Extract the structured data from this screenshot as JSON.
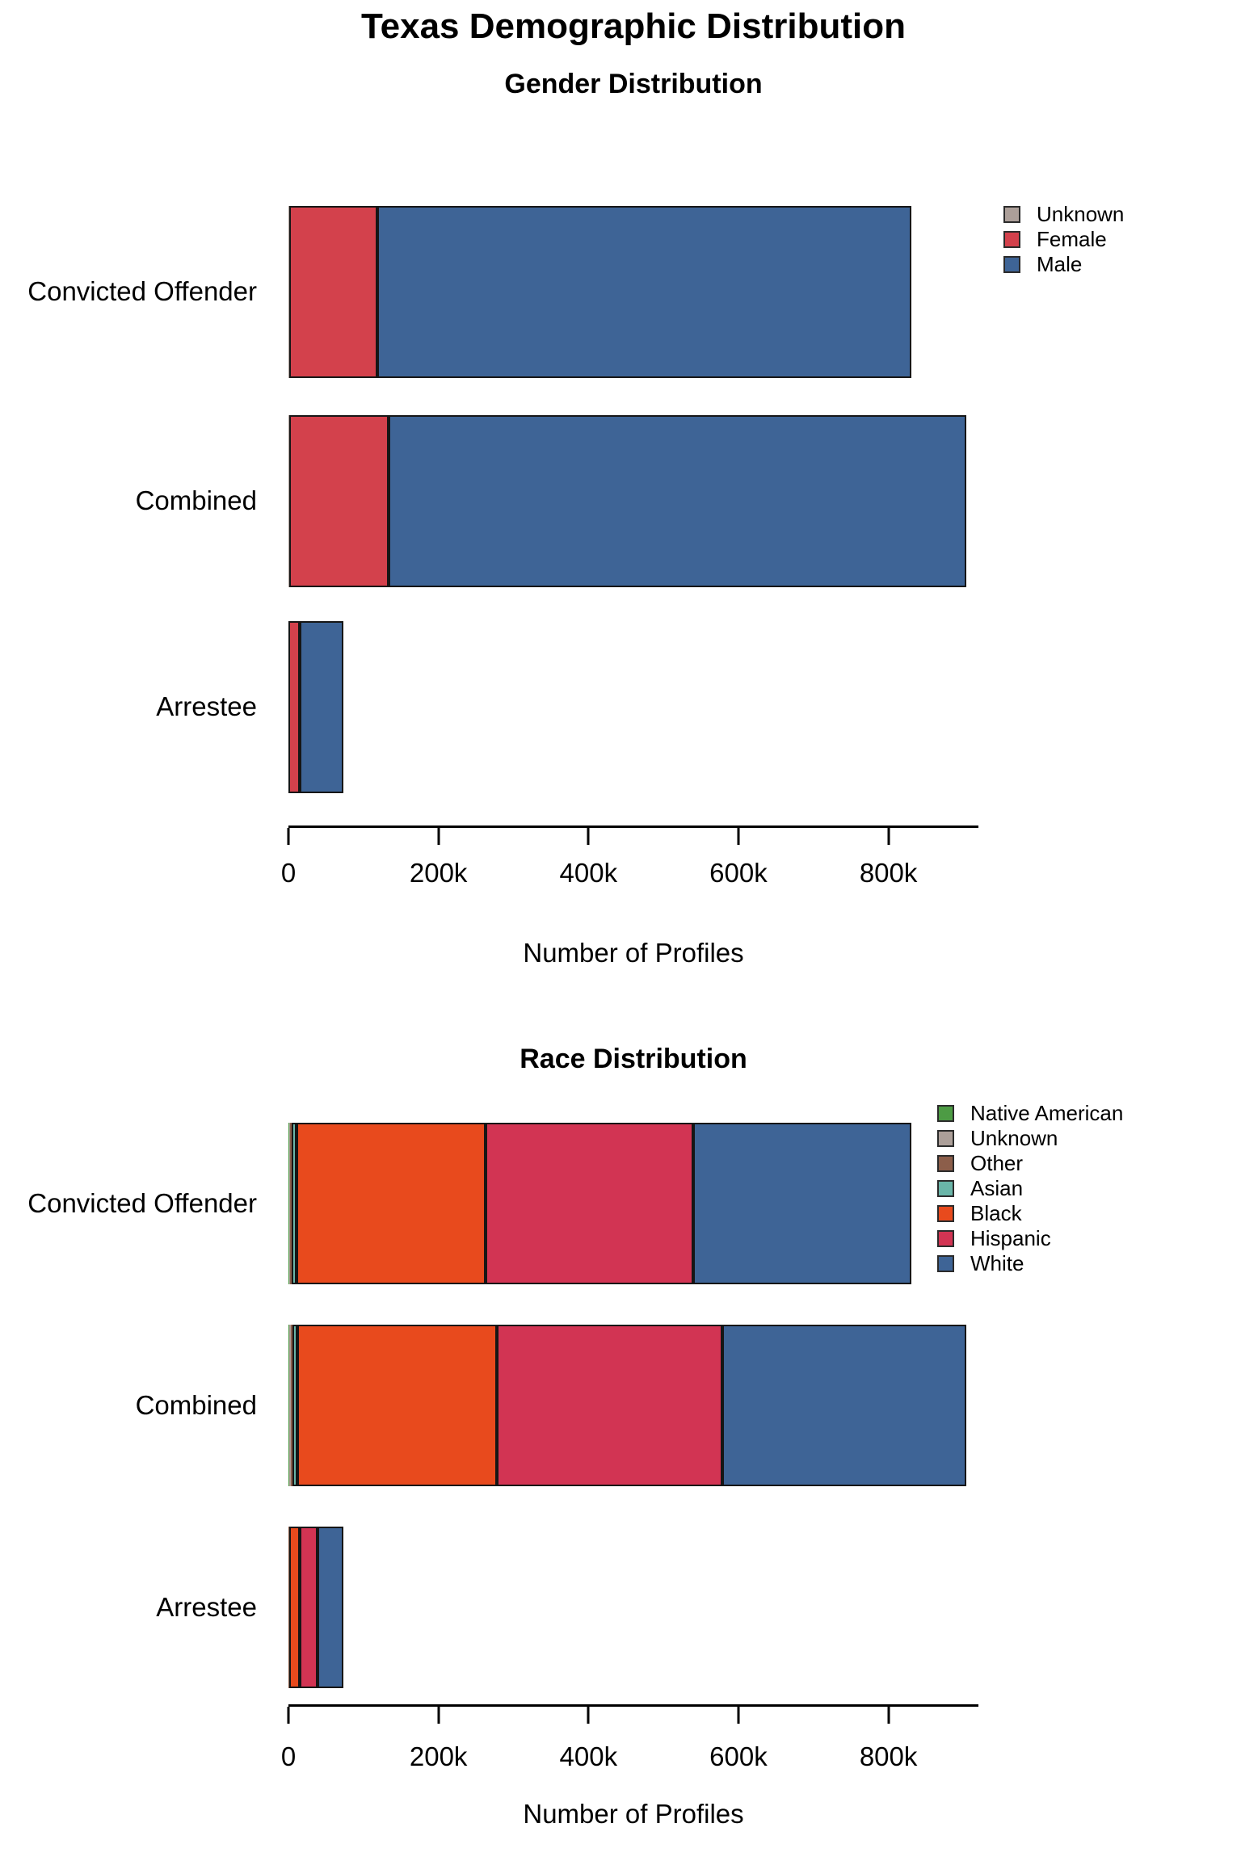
{
  "page_title": "Texas Demographic Distribution",
  "xaxis": {
    "label": "Number of Profiles",
    "max": 920000,
    "ticks": [
      {
        "value": 0,
        "label": "0"
      },
      {
        "value": 200000,
        "label": "200k"
      },
      {
        "value": 400000,
        "label": "400k"
      },
      {
        "value": 600000,
        "label": "600k"
      },
      {
        "value": 800000,
        "label": "800k"
      }
    ]
  },
  "chart_data": [
    {
      "type": "bar",
      "orientation": "horizontal",
      "stacked": true,
      "title": "Gender Distribution",
      "xlabel": "Number of Profiles",
      "xlim": [
        0,
        920000
      ],
      "grid": false,
      "legend_position": "top-right",
      "categories": [
        "Convicted Offender",
        "Combined",
        "Arrestee"
      ],
      "series": [
        {
          "name": "Unknown",
          "color": "#AC9F99"
        },
        {
          "name": "Female",
          "color": "#D3414C"
        },
        {
          "name": "Male",
          "color": "#3E6496"
        }
      ],
      "rows": [
        {
          "label": "Convicted Offender",
          "values": [
            600,
            118000,
            712000
          ]
        },
        {
          "label": "Combined",
          "values": [
            700,
            133000,
            770000
          ]
        },
        {
          "label": "Arrestee",
          "values": [
            100,
            15000,
            58000
          ]
        }
      ]
    },
    {
      "type": "bar",
      "orientation": "horizontal",
      "stacked": true,
      "title": "Race Distribution",
      "xlabel": "Number of Profiles",
      "xlim": [
        0,
        920000
      ],
      "grid": false,
      "legend_position": "top-right",
      "categories": [
        "Convicted Offender",
        "Combined",
        "Arrestee"
      ],
      "series": [
        {
          "name": "Native American",
          "color": "#4D9B44"
        },
        {
          "name": "Unknown",
          "color": "#AC9F99"
        },
        {
          "name": "Other",
          "color": "#8C5E4A"
        },
        {
          "name": "Asian",
          "color": "#6AB5A8"
        },
        {
          "name": "Black",
          "color": "#E84A1D"
        },
        {
          "name": "Hispanic",
          "color": "#D23453"
        },
        {
          "name": "White",
          "color": "#3E6496"
        }
      ],
      "rows": [
        {
          "label": "Convicted Offender",
          "values": [
            900,
            1600,
            2100,
            6000,
            252000,
            277000,
            291000
          ]
        },
        {
          "label": "Combined",
          "values": [
            1000,
            1800,
            2400,
            6500,
            266000,
            301000,
            325000
          ]
        },
        {
          "label": "Arrestee",
          "values": [
            100,
            200,
            300,
            500,
            14000,
            24000,
            34000
          ]
        }
      ]
    }
  ]
}
